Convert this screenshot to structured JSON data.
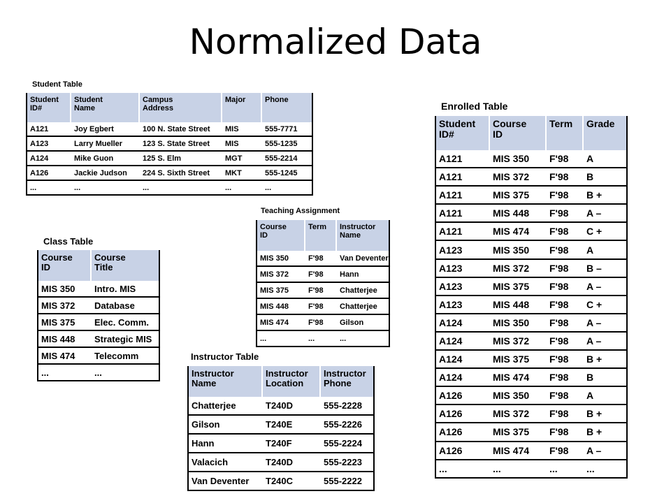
{
  "slide_title": "Normalized Data",
  "student_table": {
    "caption": "Student Table",
    "headers": [
      "Student\nID#",
      "Student\nName",
      "Campus\nAddress",
      "Major",
      "Phone"
    ],
    "rows": [
      [
        "A121",
        "Joy Egbert",
        "100 N. State Street",
        "MIS",
        "555-7771"
      ],
      [
        "A123",
        "Larry Mueller",
        "123 S. State Street",
        "MIS",
        "555-1235"
      ],
      [
        "A124",
        "Mike Guon",
        "125 S. Elm",
        "MGT",
        "555-2214"
      ],
      [
        "A126",
        "Jackie Judson",
        "224 S. Sixth Street",
        "MKT",
        "555-1245"
      ],
      [
        "...",
        "...",
        "...",
        "...",
        "..."
      ]
    ]
  },
  "class_table": {
    "caption": "Class Table",
    "headers": [
      "Course\nID",
      "Course\nTitle"
    ],
    "rows": [
      [
        "MIS 350",
        "Intro. MIS"
      ],
      [
        "MIS 372",
        "Database"
      ],
      [
        "MIS 375",
        "Elec. Comm."
      ],
      [
        "MIS 448",
        "Strategic MIS"
      ],
      [
        "MIS 474",
        "Telecomm"
      ],
      [
        "...",
        "..."
      ]
    ]
  },
  "teaching_table": {
    "caption": "Teaching Assignment",
    "headers": [
      "Course\nID",
      "Term",
      "Instructor\nName"
    ],
    "rows": [
      [
        "MIS 350",
        "F'98",
        "Van Deventer"
      ],
      [
        "MIS 372",
        "F'98",
        "Hann"
      ],
      [
        "MIS 375",
        "F'98",
        "Chatterjee"
      ],
      [
        "MIS 448",
        "F'98",
        "Chatterjee"
      ],
      [
        "MIS 474",
        "F'98",
        "Gilson"
      ],
      [
        "...",
        "...",
        "..."
      ]
    ]
  },
  "instructor_table": {
    "caption": "Instructor Table",
    "headers": [
      "Instructor\nName",
      "Instructor\nLocation",
      "Instructor\nPhone"
    ],
    "rows": [
      [
        "Chatterjee",
        "T240D",
        "555-2228"
      ],
      [
        "Gilson",
        "T240E",
        "555-2226"
      ],
      [
        "Hann",
        "T240F",
        "555-2224"
      ],
      [
        "Valacich",
        "T240D",
        "555-2223"
      ],
      [
        "Van Deventer",
        "T240C",
        "555-2222"
      ]
    ]
  },
  "enrolled_table": {
    "caption": "Enrolled Table",
    "headers": [
      "Student\nID#",
      "Course\nID",
      "Term",
      "Grade"
    ],
    "rows": [
      [
        "A121",
        "MIS 350",
        "F'98",
        "A"
      ],
      [
        "A121",
        "MIS 372",
        "F'98",
        "B"
      ],
      [
        "A121",
        "MIS 375",
        "F'98",
        "B +"
      ],
      [
        "A121",
        "MIS 448",
        "F'98",
        "A –"
      ],
      [
        "A121",
        "MIS 474",
        "F'98",
        "C +"
      ],
      [
        "A123",
        "MIS 350",
        "F'98",
        "A"
      ],
      [
        "A123",
        "MIS 372",
        "F'98",
        "B –"
      ],
      [
        "A123",
        "MIS 375",
        "F'98",
        "A –"
      ],
      [
        "A123",
        "MIS 448",
        "F'98",
        "C +"
      ],
      [
        "A124",
        "MIS 350",
        "F'98",
        "A –"
      ],
      [
        "A124",
        "MIS 372",
        "F'98",
        "A –"
      ],
      [
        "A124",
        "MIS 375",
        "F'98",
        "B +"
      ],
      [
        "A124",
        "MIS 474",
        "F'98",
        "B"
      ],
      [
        "A126",
        "MIS 350",
        "F'98",
        "A"
      ],
      [
        "A126",
        "MIS 372",
        "F'98",
        "B +"
      ],
      [
        "A126",
        "MIS 375",
        "F'98",
        "B +"
      ],
      [
        "A126",
        "MIS 474",
        "F'98",
        "A –"
      ],
      [
        "...",
        "...",
        "...",
        "..."
      ]
    ]
  }
}
